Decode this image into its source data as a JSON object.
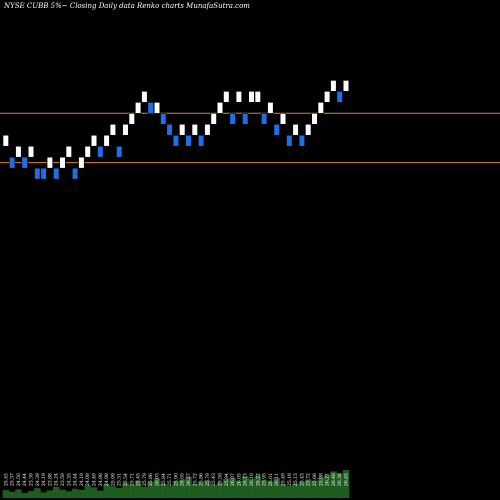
{
  "chart_data": {
    "type": "renko",
    "title": "NYSE CUBB 5%~  Closing Daily data  Renko  charts MunafaSutra.com",
    "ylim": [
      19.4,
      27.6
    ],
    "colors": {
      "background": "#000000",
      "up_brick": "#ffffff",
      "down_brick": "#1e6fe8",
      "reference_line": "#d4871c",
      "volume": "#1f5d1f"
    },
    "reference_levels": [
      25.9,
      25.0
    ],
    "bricks": [
      {
        "dir": "up",
        "value": 25.5
      },
      {
        "dir": "down",
        "value": 25.1
      },
      {
        "dir": "up",
        "value": 25.3
      },
      {
        "dir": "down",
        "value": 25.1
      },
      {
        "dir": "up",
        "value": 25.3
      },
      {
        "dir": "down",
        "value": 24.9
      },
      {
        "dir": "down",
        "value": 24.9
      },
      {
        "dir": "up",
        "value": 25.1
      },
      {
        "dir": "down",
        "value": 24.9
      },
      {
        "dir": "up",
        "value": 25.1
      },
      {
        "dir": "up",
        "value": 25.3
      },
      {
        "dir": "down",
        "value": 24.9
      },
      {
        "dir": "up",
        "value": 25.1
      },
      {
        "dir": "up",
        "value": 25.3
      },
      {
        "dir": "up",
        "value": 25.5
      },
      {
        "dir": "down",
        "value": 25.3
      },
      {
        "dir": "up",
        "value": 25.5
      },
      {
        "dir": "up",
        "value": 25.7
      },
      {
        "dir": "down",
        "value": 25.3
      },
      {
        "dir": "up",
        "value": 25.7
      },
      {
        "dir": "up",
        "value": 25.9
      },
      {
        "dir": "up",
        "value": 26.1
      },
      {
        "dir": "up",
        "value": 26.3
      },
      {
        "dir": "down",
        "value": 26.1
      },
      {
        "dir": "up",
        "value": 26.1
      },
      {
        "dir": "down",
        "value": 25.9
      },
      {
        "dir": "down",
        "value": 25.7
      },
      {
        "dir": "down",
        "value": 25.5
      },
      {
        "dir": "up",
        "value": 25.7
      },
      {
        "dir": "down",
        "value": 25.5
      },
      {
        "dir": "up",
        "value": 25.7
      },
      {
        "dir": "down",
        "value": 25.5
      },
      {
        "dir": "up",
        "value": 25.7
      },
      {
        "dir": "up",
        "value": 25.9
      },
      {
        "dir": "up",
        "value": 26.1
      },
      {
        "dir": "up",
        "value": 26.3
      },
      {
        "dir": "down",
        "value": 25.9
      },
      {
        "dir": "up",
        "value": 26.3
      },
      {
        "dir": "down",
        "value": 25.9
      },
      {
        "dir": "up",
        "value": 26.3
      },
      {
        "dir": "up",
        "value": 26.3
      },
      {
        "dir": "down",
        "value": 25.9
      },
      {
        "dir": "up",
        "value": 26.1
      },
      {
        "dir": "down",
        "value": 25.7
      },
      {
        "dir": "up",
        "value": 25.9
      },
      {
        "dir": "down",
        "value": 25.5
      },
      {
        "dir": "up",
        "value": 25.7
      },
      {
        "dir": "down",
        "value": 25.5
      },
      {
        "dir": "up",
        "value": 25.7
      },
      {
        "dir": "up",
        "value": 25.9
      },
      {
        "dir": "up",
        "value": 26.1
      },
      {
        "dir": "up",
        "value": 26.3
      },
      {
        "dir": "up",
        "value": 26.5
      },
      {
        "dir": "down",
        "value": 26.3
      },
      {
        "dir": "up",
        "value": 26.5
      }
    ],
    "x_tick_labels": [
      "25.45",
      "25.37",
      "24.50",
      "24.44",
      "23.39",
      "24.39",
      "24.19",
      "23.88",
      "24.24",
      "23.59",
      "24.35",
      "24.44",
      "24.19",
      "24.09",
      "24.49",
      "24.98",
      "24.98",
      "25.09",
      "25.31",
      "25.54",
      "25.71",
      "25.45",
      "25.79",
      "25.86",
      "26.03",
      "25.84",
      "25.71",
      "25.90",
      "26.05",
      "26.27",
      "25.72",
      "25.86",
      "25.79",
      "25.43",
      "25.59",
      "25.94",
      "26.07",
      "26.05",
      "26.13",
      "26.10",
      "26.22",
      "25.95",
      "26.01",
      "26.11",
      "25.49",
      "25.19",
      "25.13",
      "25.43",
      "25.72",
      "25.66",
      "25.98",
      "26.21",
      "26.48",
      "26.38",
      "26.45"
    ],
    "volume": [
      0.28,
      0.22,
      0.31,
      0.18,
      0.25,
      0.35,
      0.2,
      0.27,
      0.4,
      0.3,
      0.24,
      0.33,
      0.29,
      0.45,
      0.38,
      0.26,
      0.5,
      0.42,
      0.36,
      0.55,
      0.48,
      0.62,
      0.4,
      0.58,
      0.7,
      0.52,
      0.44,
      0.6,
      0.66,
      0.75,
      0.5,
      0.57,
      0.63,
      0.46,
      0.54,
      0.68,
      0.72,
      0.61,
      0.78,
      0.69,
      0.8,
      0.64,
      0.59,
      0.71,
      0.49,
      0.43,
      0.52,
      0.58,
      0.66,
      0.62,
      0.74,
      0.82,
      0.95,
      0.88,
      1.0
    ]
  }
}
